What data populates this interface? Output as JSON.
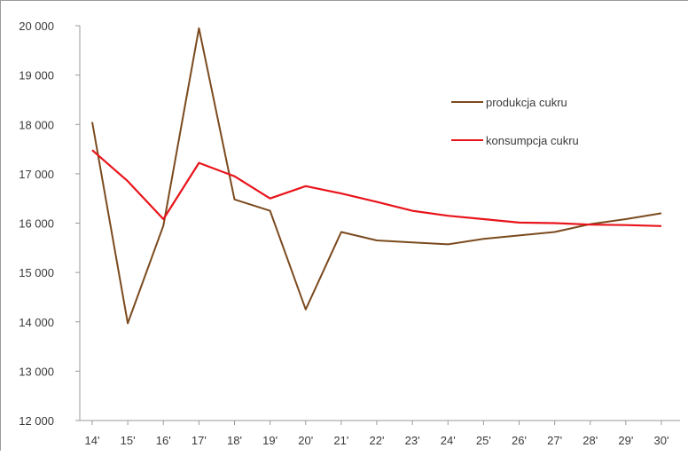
{
  "chart_data": {
    "type": "line",
    "categories": [
      "14'",
      "15'",
      "16'",
      "17'",
      "18'",
      "19'",
      "20'",
      "21'",
      "22'",
      "23'",
      "24'",
      "25'",
      "26'",
      "27'",
      "28'",
      "29'",
      "30'"
    ],
    "series": [
      {
        "name": "produkcja cukru",
        "color": "#7b4a1e",
        "values": [
          18050,
          13970,
          15950,
          19950,
          16480,
          16250,
          14250,
          15820,
          15650,
          15610,
          15570,
          15680,
          15750,
          15820,
          15980,
          16080,
          16200
        ]
      },
      {
        "name": "konsumpcja cukru",
        "color": "#e8141b",
        "values": [
          17480,
          16850,
          16080,
          17220,
          16950,
          16500,
          16750,
          16600,
          16430,
          16250,
          16150,
          16080,
          16010,
          16000,
          15970,
          15960,
          15940
        ]
      }
    ],
    "yticks": [
      "20 000",
      "19 000",
      "18 000",
      "17 000",
      "16 000",
      "15 000",
      "14 000",
      "13 000",
      "12 000"
    ],
    "ylim": [
      12000,
      20000
    ],
    "grid": false,
    "legend_position": "right"
  }
}
